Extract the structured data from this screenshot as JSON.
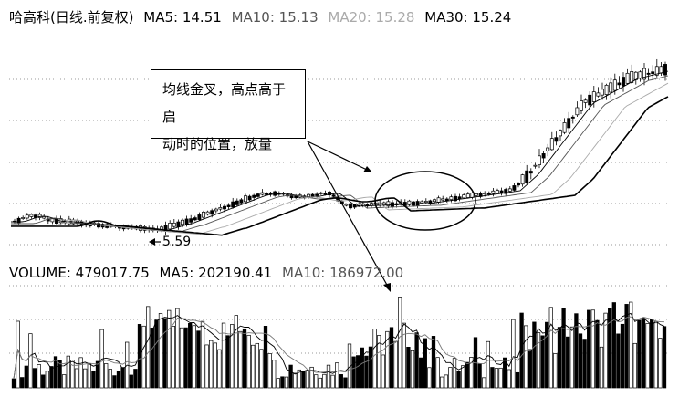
{
  "header": {
    "stock": "哈高科(日线.前复权)",
    "ma5_label": "MA5: 14.51",
    "ma10_label": "MA10: 15.13",
    "ma20_label": "MA20: 15.28",
    "ma30_label": "MA30: 15.24"
  },
  "volume_header": {
    "volume_label": "VOLUME: 479017.75",
    "ma5_label": "MA5: 202190.41",
    "ma10_label": "MA10: 186972.00"
  },
  "annotation": {
    "line1": "均线金叉，高点高于启",
    "line2": "动时的位置，放量"
  },
  "low_label": "5.59",
  "colors": {
    "ma5": "#000000",
    "ma10": "#555555",
    "ma20": "#aaaaaa",
    "ma30": "#000000",
    "grid": "#999999",
    "candle": "#000000"
  },
  "chart_data": {
    "type": "candlestick",
    "ma_window_values": {
      "MA5": 14.51,
      "MA10": 15.13,
      "MA20": 15.28,
      "MA30": 15.24
    },
    "low_point": 5.59,
    "volume_last": 479017.75,
    "volume_ma5": 202190.41,
    "volume_ma10": 186972.0
  }
}
